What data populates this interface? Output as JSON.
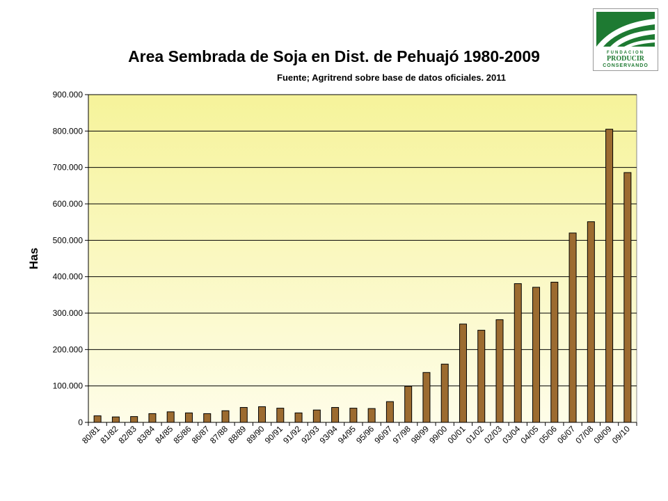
{
  "header": {
    "title": "Area Sembrada de Soja en Dist. de Pehuajó  1980-2009",
    "subtitle": "Fuente; Agritrend sobre base de datos oficiales.  2011"
  },
  "logo": {
    "line1": "FUNDACION",
    "line2": "PRODUCIR",
    "line3": "CONSERVANDO",
    "brand_color": "#1e7a32"
  },
  "chart_data": {
    "type": "bar",
    "title": "Area Sembrada de Soja en Dist. de Pehuajó  1980-2009",
    "subtitle": "Fuente; Agritrend sobre base de datos oficiales.  2011",
    "xlabel": "",
    "ylabel": "Has",
    "ylim": [
      0,
      900000
    ],
    "yticks": [
      "0",
      "100.000",
      "200.000",
      "300.000",
      "400.000",
      "500.000",
      "600.000",
      "700.000",
      "800.000",
      "900.000"
    ],
    "ytick_values": [
      0,
      100000,
      200000,
      300000,
      400000,
      500000,
      600000,
      700000,
      800000,
      900000
    ],
    "grid": true,
    "legend": "none",
    "bar_color": "#9c6b30",
    "categories": [
      "80/81",
      "81/82",
      "82/83",
      "83/84",
      "84/85",
      "85/86",
      "86/87",
      "87/88",
      "88/89",
      "89/90",
      "90/91",
      "91/92",
      "92/93",
      "93/94",
      "94/95",
      "95/96",
      "96/97",
      "97/98",
      "98/99",
      "99/00",
      "00/01",
      "01/02",
      "02/03",
      "03/04",
      "04/05",
      "05/06",
      "06/07",
      "07/08",
      "08/09",
      "09/10"
    ],
    "values": [
      18000,
      15000,
      16000,
      24000,
      29000,
      26000,
      24000,
      32000,
      41000,
      43000,
      39000,
      26000,
      34000,
      41000,
      39000,
      38000,
      57000,
      99000,
      137000,
      160000,
      270000,
      253000,
      282000,
      381000,
      371000,
      385000,
      520000,
      551000,
      805000,
      686000
    ]
  }
}
